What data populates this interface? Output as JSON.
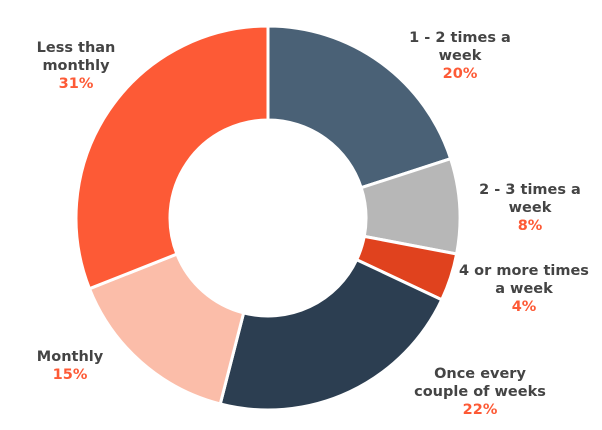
{
  "chart_data": {
    "type": "pie",
    "donut": true,
    "categories": [
      "1 - 2 times a week",
      "2 - 3 times a week",
      "4 or more times a week",
      "Once every couple of weeks",
      "Monthly",
      "Less than monthly"
    ],
    "values": [
      20,
      8,
      4,
      22,
      15,
      31
    ],
    "value_labels": [
      "20%",
      "8%",
      "4%",
      "22%",
      "15%",
      "31%"
    ],
    "label_lines": [
      [
        "1 - 2 times a",
        "week"
      ],
      [
        "2 - 3 times a",
        "week"
      ],
      [
        "4 or more times",
        "a week"
      ],
      [
        "Once every",
        "couple of weeks"
      ],
      [
        "Monthly"
      ],
      [
        "Less than",
        "monthly"
      ]
    ],
    "colors": [
      "#4a6176",
      "#b7b7b7",
      "#e0421e",
      "#2c3e51",
      "#fbbda9",
      "#fd5a36"
    ],
    "value_label_color": "#fd5a36",
    "start_angle_deg": 0,
    "direction": "clockwise",
    "grid": false,
    "legend": "none"
  }
}
